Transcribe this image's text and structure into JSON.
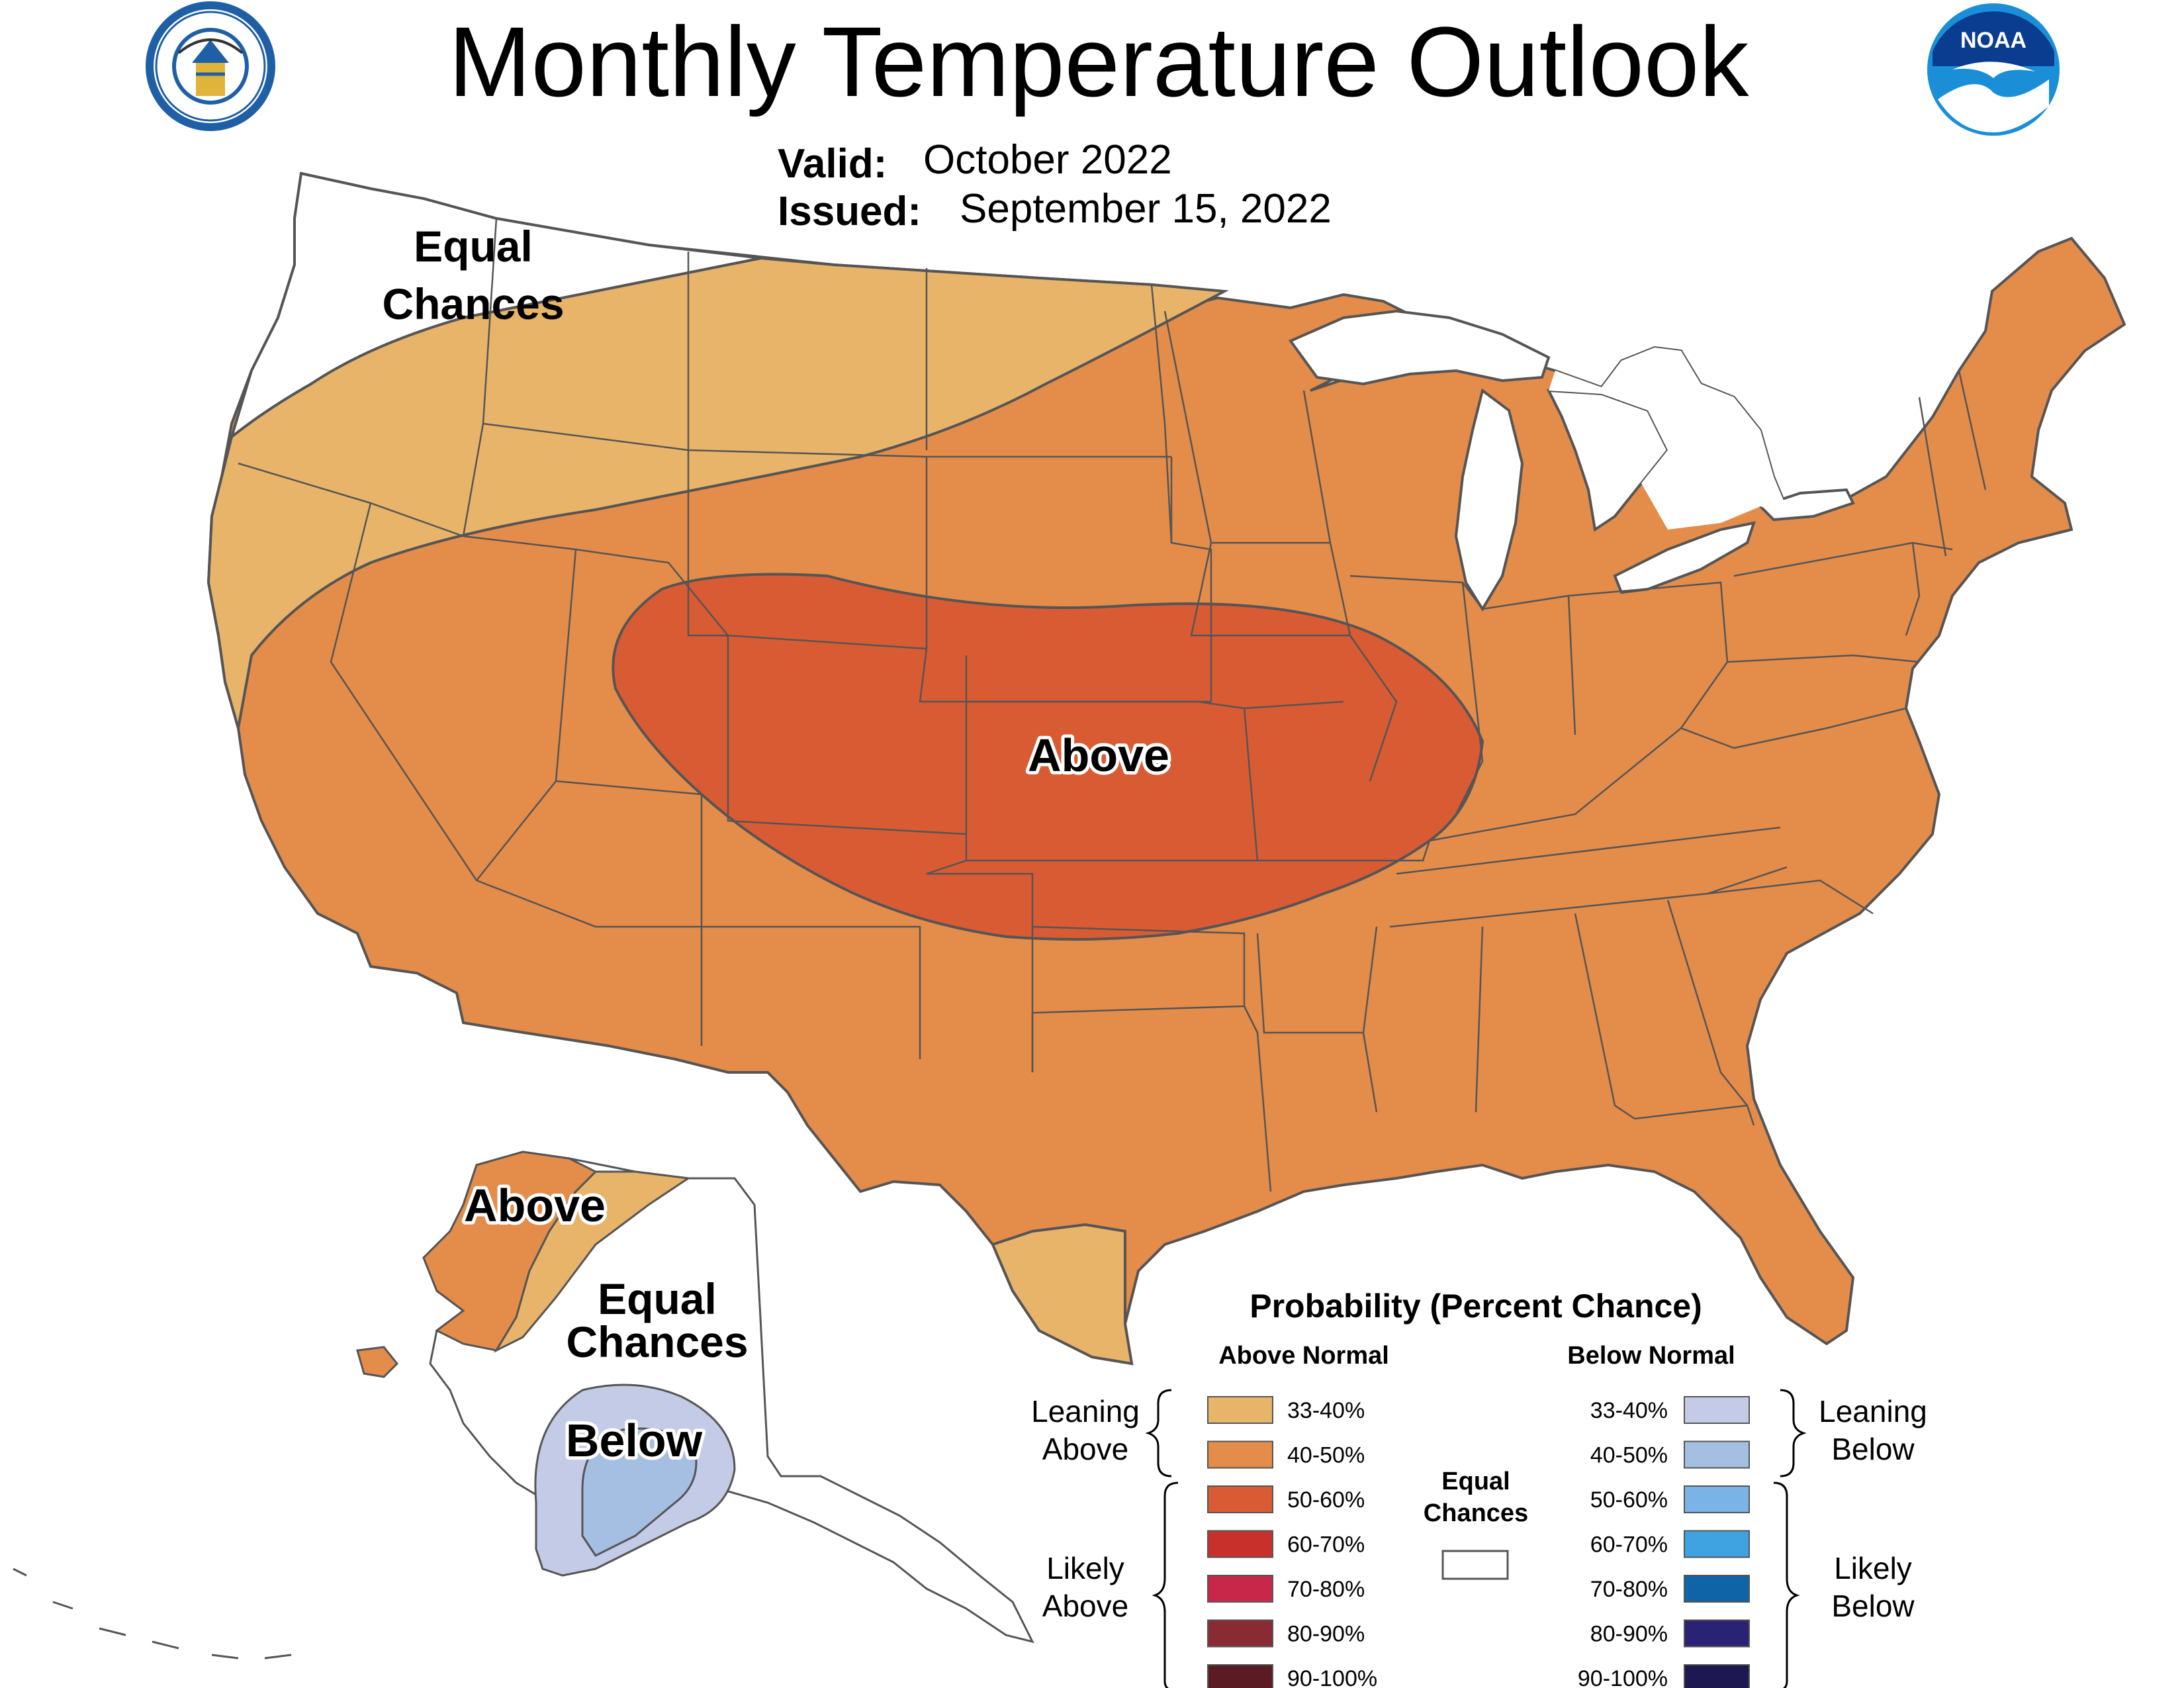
{
  "header": {
    "title": "Monthly Temperature Outlook",
    "valid_label": "Valid:",
    "valid_value": "October 2022",
    "issued_label": "Issued:",
    "issued_value": "September 15, 2022"
  },
  "logos": {
    "left": {
      "icon": "department-of-commerce-seal-icon",
      "text": "DEPARTMENT OF COMMERCE · UNITED STATES OF AMERICA"
    },
    "right": {
      "icon": "noaa-logo-icon",
      "text": "NOAA"
    }
  },
  "regions": {
    "conus_equal_chances": [
      "Equal",
      "Chances"
    ],
    "conus_above": "Above",
    "alaska_above": "Above",
    "alaska_equal_chances": [
      "Equal",
      "Chances"
    ],
    "alaska_below": "Below"
  },
  "colors": {
    "above_33_40": "#e8b46a",
    "above_40_50": "#e48c4a",
    "above_50_60": "#d95b33",
    "above_60_70": "#c8302c",
    "above_70_80": "#c8274a",
    "above_80_90": "#8a2a35",
    "above_90_100": "#5a1c22",
    "below_33_40": "#c3cbe6",
    "below_40_50": "#a4bfe2",
    "below_50_60": "#7ab4e6",
    "below_60_70": "#3ea3e0",
    "below_70_80": "#0f64a8",
    "below_80_90": "#2a2275",
    "below_90_100": "#1d1850",
    "equal_chances": "#ffffff",
    "outline": "#555555"
  },
  "legend": {
    "title": "Probability (Percent Chance)",
    "above_header": "Above Normal",
    "below_header": "Below Normal",
    "equal_chances": [
      "Equal",
      "Chances"
    ],
    "leaning_above": [
      "Leaning",
      "Above"
    ],
    "likely_above": [
      "Likely",
      "Above"
    ],
    "leaning_below": [
      "Leaning",
      "Below"
    ],
    "likely_below": [
      "Likely",
      "Below"
    ],
    "above_ranges": [
      "33-40%",
      "40-50%",
      "50-60%",
      "60-70%",
      "70-80%",
      "80-90%",
      "90-100%"
    ],
    "below_ranges": [
      "33-40%",
      "40-50%",
      "50-60%",
      "60-70%",
      "70-80%",
      "80-90%",
      "90-100%"
    ]
  }
}
